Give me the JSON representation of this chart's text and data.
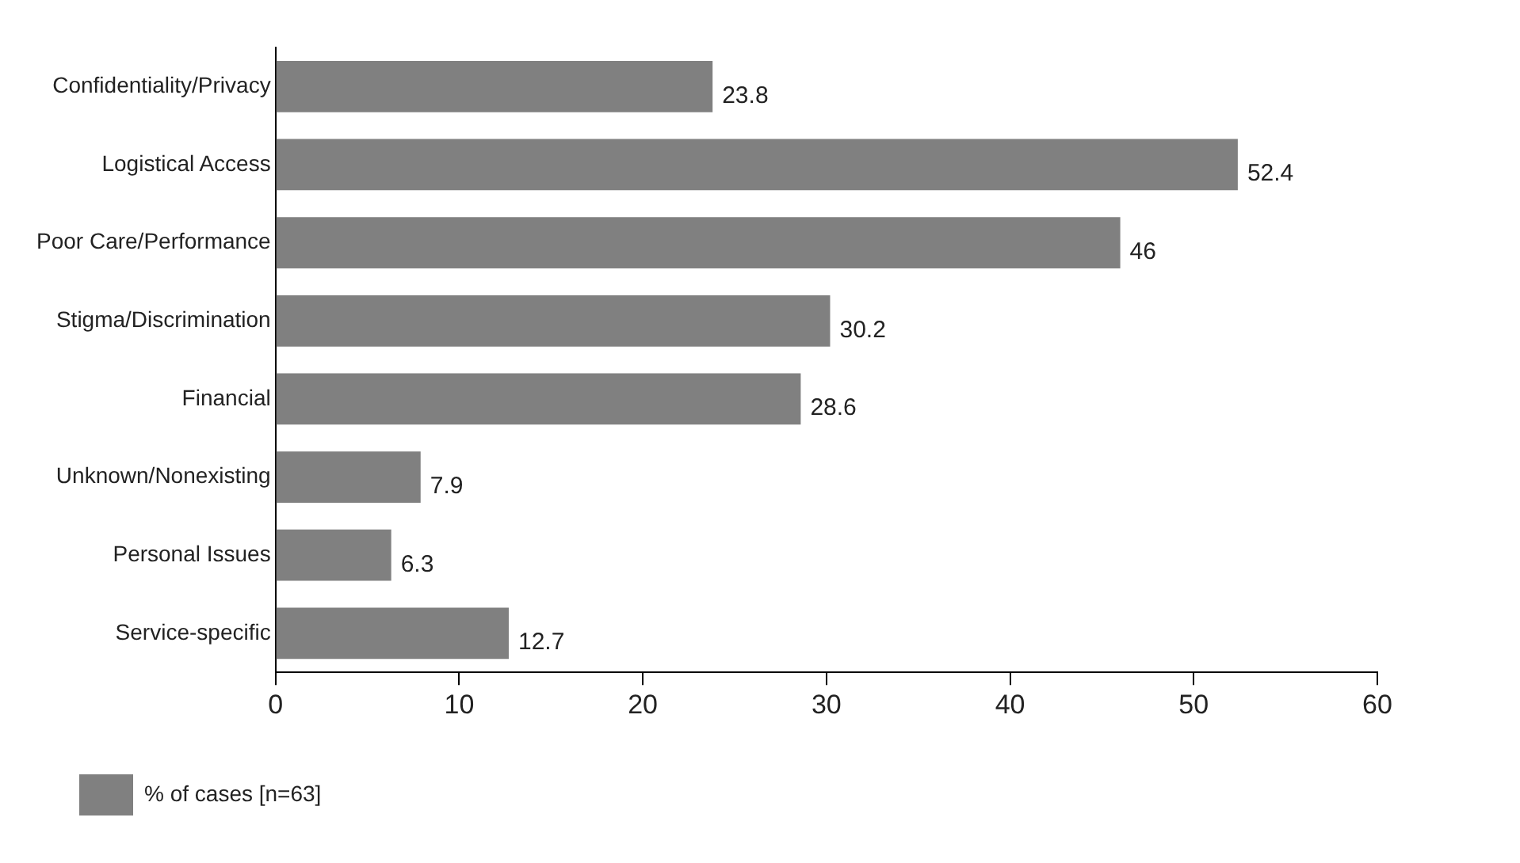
{
  "chart_data": {
    "type": "bar",
    "orientation": "horizontal",
    "categories": [
      "Confidentiality/Privacy",
      "Logistical Access",
      "Poor Care/Performance",
      "Stigma/Discrimination",
      "Financial",
      "Unknown/Nonexisting",
      "Personal Issues",
      "Service-specific"
    ],
    "series": [
      {
        "name": "% of cases [n=63]",
        "color": "#808080",
        "values": [
          23.8,
          52.4,
          46,
          30.2,
          28.6,
          7.9,
          6.3,
          12.7
        ]
      }
    ],
    "xlim": [
      0,
      60
    ],
    "xticks": [
      0,
      10,
      20,
      30,
      40,
      50,
      60
    ],
    "grid": false,
    "legend": "bottom left",
    "data_labels": true
  }
}
